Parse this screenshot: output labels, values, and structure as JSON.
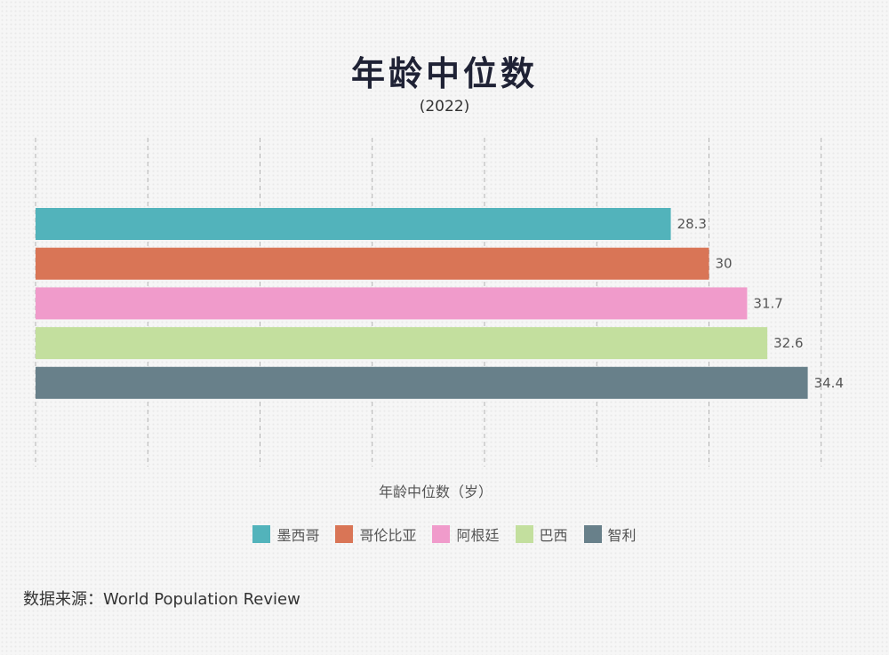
{
  "chart_data": {
    "type": "bar",
    "orientation": "horizontal",
    "title": "年龄中位数",
    "subtitle": "(2022)",
    "xlabel": "年龄中位数（岁）",
    "ylabel": "",
    "xlim": [
      0,
      35
    ],
    "grid": true,
    "legend_position": "bottom",
    "categories": [
      "墨西哥",
      "哥伦比亚",
      "阿根廷",
      "巴西",
      "智利"
    ],
    "values": [
      28.3,
      30,
      31.7,
      32.6,
      34.4
    ],
    "value_labels": [
      "28.3",
      "30",
      "31.7",
      "32.6",
      "34.4"
    ],
    "colors": [
      "#52b3bb",
      "#d97556",
      "#f09bcb",
      "#c3df9e",
      "#68808a"
    ]
  },
  "source": {
    "text": "数据来源：World Population Review"
  }
}
